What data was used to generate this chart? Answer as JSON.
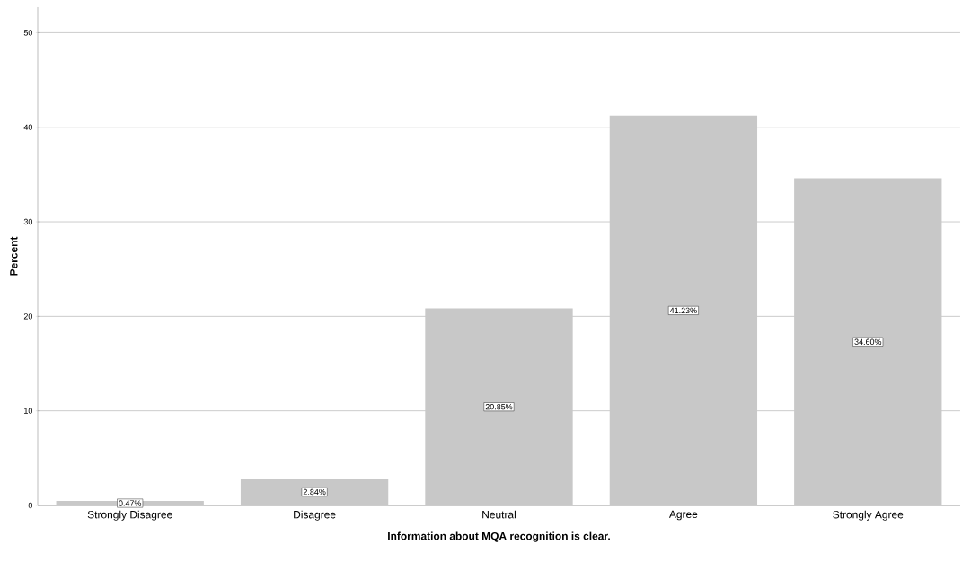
{
  "chart_data": {
    "type": "bar",
    "xlabel": "Information about MQA recognition is clear.",
    "ylabel": "Percent",
    "categories": [
      "Strongly Disagree",
      "Disagree",
      "Neutral",
      "Agree",
      "Strongly Agree"
    ],
    "values": [
      0.47,
      2.84,
      20.85,
      41.23,
      34.6
    ],
    "value_labels": [
      "0.47%",
      "2.84%",
      "20.85%",
      "41.23%",
      "34.60%"
    ],
    "color": "#c8c8c8",
    "ylim": [
      0,
      52.7
    ],
    "yticks": [
      0,
      10,
      20,
      30,
      40,
      50
    ],
    "grid": "y"
  }
}
